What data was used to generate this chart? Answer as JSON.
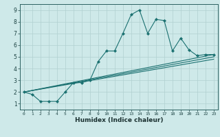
{
  "xlabel": "Humidex (Indice chaleur)",
  "xlim": [
    -0.5,
    23.5
  ],
  "ylim": [
    0.5,
    9.5
  ],
  "xticks": [
    0,
    1,
    2,
    3,
    4,
    5,
    6,
    7,
    8,
    9,
    10,
    11,
    12,
    13,
    14,
    15,
    16,
    17,
    18,
    19,
    20,
    21,
    22,
    23
  ],
  "yticks": [
    1,
    2,
    3,
    4,
    5,
    6,
    7,
    8,
    9
  ],
  "bg_color": "#cee9e9",
  "grid_color": "#b0d0d0",
  "line_color": "#1a7070",
  "spine_color": "#2a6060",
  "tick_color": "#1a4040",
  "xlabel_color": "#1a3030",
  "lines": [
    {
      "x": [
        0,
        1,
        2,
        3,
        4,
        5,
        6,
        7,
        8,
        9,
        10,
        11,
        12,
        13,
        14,
        15,
        16,
        17,
        18,
        19,
        20,
        21,
        22,
        23
      ],
      "y": [
        2.0,
        1.8,
        1.2,
        1.2,
        1.2,
        2.0,
        2.8,
        2.8,
        3.0,
        4.6,
        5.5,
        5.5,
        7.0,
        8.6,
        9.0,
        7.0,
        8.2,
        8.1,
        5.5,
        6.6,
        5.6,
        5.1,
        5.2,
        5.2
      ],
      "marker": "D",
      "markersize": 2.2
    },
    {
      "x": [
        0,
        23
      ],
      "y": [
        2.0,
        5.2
      ],
      "marker": null
    },
    {
      "x": [
        0,
        23
      ],
      "y": [
        2.0,
        5.0
      ],
      "marker": null
    },
    {
      "x": [
        0,
        23
      ],
      "y": [
        2.0,
        4.8
      ],
      "marker": null
    }
  ]
}
